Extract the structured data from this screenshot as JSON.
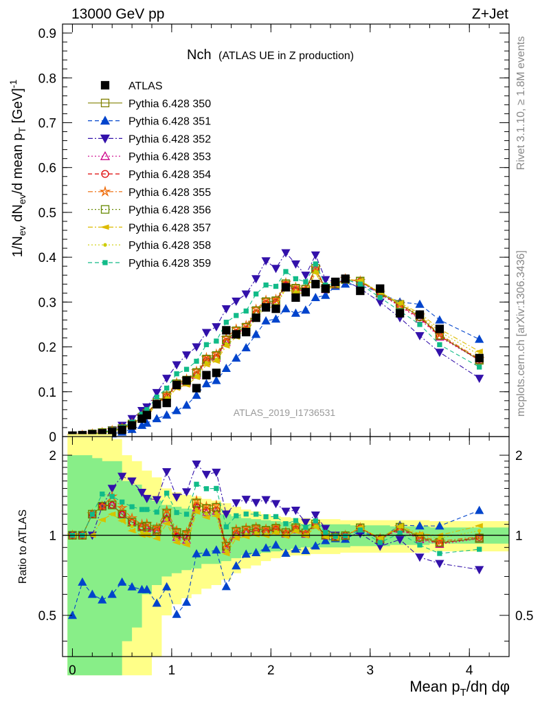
{
  "header": {
    "left": "13000 GeV pp",
    "right": "Z+Jet"
  },
  "side_labels": {
    "rivet": "Rivet 3.1.10, ≥ 1.8M events",
    "mcplots": "mcplots.cern.ch [arXiv:1306.3436]"
  },
  "chart_data": [
    {
      "panel": "main",
      "type": "line",
      "title_main": "Nch",
      "title_sub": "(ATLAS UE in Z production)",
      "ylabel": "1/N_ev dN_ev/d mean p_T [GeV]^-1",
      "watermark": "ATLAS_2019_I1736531",
      "xlim": [
        -0.1,
        4.4
      ],
      "ylim": [
        0,
        0.92
      ],
      "grid": false,
      "legend_position": "top-left",
      "x_ticks": [
        0,
        1,
        2,
        3,
        4
      ],
      "y_ticks": [
        0.1,
        0.2,
        0.3,
        0.4,
        0.5,
        0.6,
        0.7,
        0.8,
        0.9
      ],
      "x": [
        0.0,
        0.1,
        0.2,
        0.3,
        0.4,
        0.5,
        0.6,
        0.7,
        0.75,
        0.85,
        0.95,
        1.05,
        1.15,
        1.25,
        1.35,
        1.45,
        1.55,
        1.65,
        1.75,
        1.85,
        1.95,
        2.05,
        2.15,
        2.25,
        2.35,
        2.45,
        2.55,
        2.65,
        2.75,
        2.9,
        3.1,
        3.3,
        3.5,
        3.7,
        4.1
      ],
      "series": [
        {
          "name": "ATLAS",
          "color": "#000000",
          "marker": "square-filled",
          "dash": "none",
          "values": [
            0.002,
            0.003,
            0.005,
            0.007,
            0.01,
            0.015,
            0.025,
            0.04,
            0.048,
            0.072,
            0.075,
            0.115,
            0.125,
            0.108,
            0.137,
            0.142,
            0.237,
            0.228,
            0.233,
            0.265,
            0.288,
            0.285,
            0.333,
            0.31,
            0.322,
            0.34,
            0.33,
            0.345,
            0.352,
            0.325,
            0.33,
            0.275,
            0.272,
            0.24,
            0.175
          ]
        },
        {
          "name": "Pythia 6.428 350",
          "color": "#808000",
          "marker": "square-open",
          "dash": "solid",
          "values": [
            0.002,
            0.003,
            0.006,
            0.009,
            0.013,
            0.018,
            0.028,
            0.043,
            0.052,
            0.075,
            0.09,
            0.117,
            0.125,
            0.142,
            0.172,
            0.18,
            0.215,
            0.235,
            0.243,
            0.28,
            0.3,
            0.302,
            0.34,
            0.33,
            0.328,
            0.375,
            0.33,
            0.34,
            0.35,
            0.347,
            0.32,
            0.295,
            0.268,
            0.225,
            0.17
          ]
        },
        {
          "name": "Pythia 6.428 351",
          "color": "#0044cc",
          "marker": "triangle-up-filled",
          "dash": "dashed",
          "values": [
            0.001,
            0.002,
            0.003,
            0.004,
            0.006,
            0.01,
            0.016,
            0.025,
            0.03,
            0.04,
            0.048,
            0.058,
            0.07,
            0.092,
            0.118,
            0.125,
            0.152,
            0.175,
            0.198,
            0.228,
            0.258,
            0.262,
            0.285,
            0.275,
            0.282,
            0.31,
            0.315,
            0.335,
            0.34,
            0.338,
            0.32,
            0.3,
            0.295,
            0.26,
            0.217
          ]
        },
        {
          "name": "Pythia 6.428 352",
          "color": "#3311aa",
          "marker": "triangle-down-filled",
          "dash": "dashdot",
          "values": [
            0.002,
            0.003,
            0.005,
            0.009,
            0.015,
            0.025,
            0.04,
            0.058,
            0.066,
            0.098,
            0.13,
            0.16,
            0.182,
            0.2,
            0.232,
            0.245,
            0.285,
            0.302,
            0.318,
            0.352,
            0.392,
            0.375,
            0.41,
            0.385,
            0.36,
            0.405,
            0.35,
            0.345,
            0.348,
            0.33,
            0.3,
            0.265,
            0.225,
            0.188,
            0.13
          ]
        },
        {
          "name": "Pythia 6.428 353",
          "color": "#cc0088",
          "marker": "triangle-up-open",
          "dash": "dotted",
          "values": [
            0.002,
            0.003,
            0.006,
            0.009,
            0.013,
            0.018,
            0.028,
            0.043,
            0.051,
            0.074,
            0.087,
            0.113,
            0.12,
            0.137,
            0.167,
            0.175,
            0.21,
            0.23,
            0.238,
            0.275,
            0.295,
            0.298,
            0.337,
            0.325,
            0.325,
            0.372,
            0.328,
            0.338,
            0.35,
            0.345,
            0.318,
            0.29,
            0.262,
            0.222,
            0.17
          ]
        },
        {
          "name": "Pythia 6.428 354",
          "color": "#dd0000",
          "marker": "circle-open",
          "dash": "dashed",
          "values": [
            0.002,
            0.003,
            0.006,
            0.009,
            0.013,
            0.018,
            0.028,
            0.043,
            0.051,
            0.075,
            0.089,
            0.114,
            0.122,
            0.138,
            0.17,
            0.177,
            0.212,
            0.232,
            0.24,
            0.276,
            0.297,
            0.3,
            0.338,
            0.327,
            0.326,
            0.373,
            0.329,
            0.339,
            0.351,
            0.346,
            0.319,
            0.292,
            0.265,
            0.224,
            0.172
          ]
        },
        {
          "name": "Pythia 6.428 355",
          "color": "#ee6600",
          "marker": "star-open",
          "dash": "dashdot",
          "values": [
            0.002,
            0.003,
            0.006,
            0.009,
            0.014,
            0.019,
            0.029,
            0.044,
            0.053,
            0.077,
            0.093,
            0.12,
            0.128,
            0.146,
            0.176,
            0.184,
            0.22,
            0.24,
            0.248,
            0.284,
            0.304,
            0.306,
            0.343,
            0.333,
            0.33,
            0.376,
            0.332,
            0.341,
            0.352,
            0.347,
            0.321,
            0.295,
            0.27,
            0.228,
            0.173
          ]
        },
        {
          "name": "Pythia 6.428 356",
          "color": "#668800",
          "marker": "square-open",
          "dash": "dotted",
          "values": [
            0.002,
            0.003,
            0.006,
            0.009,
            0.013,
            0.018,
            0.028,
            0.043,
            0.052,
            0.076,
            0.091,
            0.118,
            0.126,
            0.143,
            0.173,
            0.181,
            0.216,
            0.236,
            0.244,
            0.281,
            0.301,
            0.303,
            0.341,
            0.331,
            0.329,
            0.375,
            0.331,
            0.34,
            0.351,
            0.346,
            0.32,
            0.294,
            0.268,
            0.226,
            0.171
          ]
        },
        {
          "name": "Pythia 6.428 357",
          "color": "#ddbb00",
          "marker": "triangle-left-filled",
          "dash": "dashdot",
          "values": [
            0.002,
            0.003,
            0.005,
            0.008,
            0.012,
            0.017,
            0.026,
            0.04,
            0.048,
            0.07,
            0.083,
            0.108,
            0.115,
            0.132,
            0.16,
            0.168,
            0.202,
            0.222,
            0.23,
            0.266,
            0.287,
            0.29,
            0.33,
            0.32,
            0.32,
            0.365,
            0.325,
            0.338,
            0.35,
            0.348,
            0.322,
            0.298,
            0.275,
            0.24,
            0.19
          ]
        },
        {
          "name": "Pythia 6.428 358",
          "color": "#cccc00",
          "marker": "dot-filled",
          "dash": "dotted",
          "values": [
            0.002,
            0.003,
            0.005,
            0.008,
            0.012,
            0.017,
            0.027,
            0.041,
            0.049,
            0.072,
            0.086,
            0.111,
            0.118,
            0.135,
            0.165,
            0.172,
            0.207,
            0.227,
            0.235,
            0.271,
            0.291,
            0.294,
            0.333,
            0.323,
            0.323,
            0.368,
            0.327,
            0.339,
            0.35,
            0.347,
            0.321,
            0.296,
            0.272,
            0.234,
            0.182
          ]
        },
        {
          "name": "Pythia 6.428 359",
          "color": "#11bb88",
          "marker": "square-filled-small",
          "dash": "dashed",
          "values": [
            0.002,
            0.003,
            0.006,
            0.01,
            0.014,
            0.02,
            0.032,
            0.05,
            0.06,
            0.088,
            0.108,
            0.14,
            0.15,
            0.168,
            0.205,
            0.213,
            0.255,
            0.27,
            0.28,
            0.318,
            0.338,
            0.335,
            0.368,
            0.352,
            0.345,
            0.385,
            0.338,
            0.342,
            0.35,
            0.34,
            0.31,
            0.28,
            0.25,
            0.205,
            0.155
          ]
        }
      ]
    },
    {
      "panel": "ratio",
      "type": "line",
      "ylabel": "Ratio to ATLAS",
      "xlabel": "Mean p_T/dη dφ",
      "xlim": [
        -0.1,
        4.4
      ],
      "ylim": [
        0.35,
        2.35
      ],
      "y_log": true,
      "reference_line": 1,
      "x_ticks": [
        0,
        1,
        2,
        3,
        4
      ],
      "y_ticks": [
        0.5,
        1,
        2
      ],
      "band_colors": {
        "inner": "#88ee88",
        "outer": "#ffff88"
      },
      "band_x": [
        -0.05,
        0.1,
        0.2,
        0.3,
        0.4,
        0.5,
        0.6,
        0.7,
        0.8,
        0.9,
        1.0,
        1.1,
        1.2,
        1.3,
        1.4,
        1.5,
        1.6,
        1.7,
        1.8,
        1.9,
        2.0,
        2.1,
        2.2,
        2.3,
        2.4,
        2.5,
        2.6,
        2.7,
        2.8,
        3.0,
        3.2,
        3.4,
        3.6,
        3.8,
        4.4
      ],
      "band_inner_half": [
        1.0,
        1.0,
        0.95,
        0.9,
        0.9,
        0.6,
        0.55,
        0.4,
        0.35,
        0.3,
        0.28,
        0.26,
        0.25,
        0.22,
        0.22,
        0.2,
        0.18,
        0.16,
        0.15,
        0.14,
        0.13,
        0.12,
        0.11,
        0.1,
        0.1,
        0.1,
        0.1,
        0.1,
        0.09,
        0.09,
        0.08,
        0.08,
        0.07,
        0.07,
        0.07
      ],
      "band_outer_half": [
        1.4,
        1.4,
        1.4,
        1.4,
        1.3,
        1.0,
        0.9,
        0.75,
        0.65,
        0.5,
        0.45,
        0.42,
        0.4,
        0.37,
        0.35,
        0.32,
        0.28,
        0.25,
        0.23,
        0.2,
        0.18,
        0.17,
        0.16,
        0.16,
        0.15,
        0.15,
        0.15,
        0.14,
        0.14,
        0.14,
        0.14,
        0.14,
        0.13,
        0.13,
        0.13
      ]
    }
  ]
}
